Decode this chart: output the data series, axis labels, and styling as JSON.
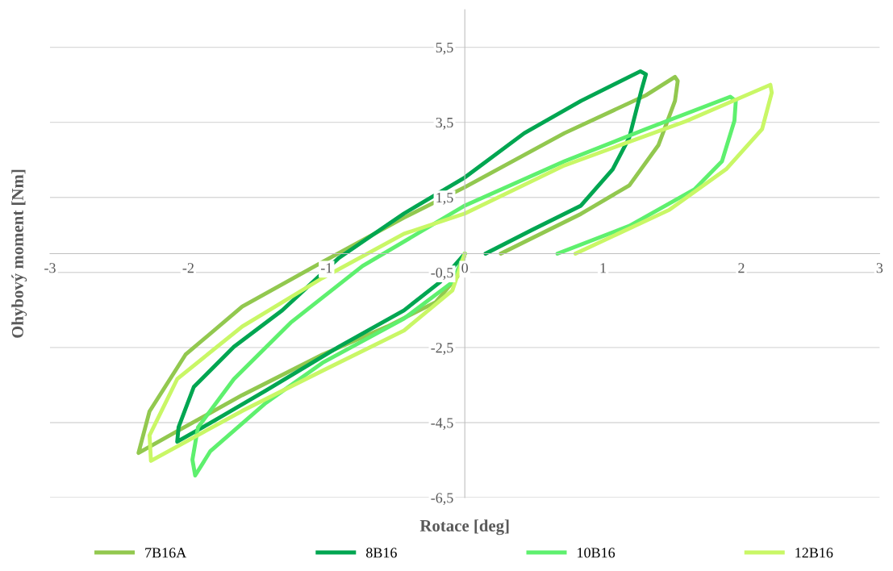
{
  "chart_data": {
    "type": "line",
    "xlabel": "Rotace [deg]",
    "ylabel": "Ohybový moment [Nm]",
    "xlim": [
      -3,
      3
    ],
    "xticks": [
      -3,
      -2,
      -1,
      0,
      1,
      2,
      3
    ],
    "ylim": [
      -6.5,
      6.5
    ],
    "yticks": [
      {
        "value": -6.5,
        "label": "-6,5"
      },
      {
        "value": -4.5,
        "label": "-4,5"
      },
      {
        "value": -2.5,
        "label": "-2,5"
      },
      {
        "value": -0.5,
        "label": "-0,5"
      },
      {
        "value": 1.5,
        "label": "1,5"
      },
      {
        "value": 3.5,
        "label": "3,5"
      },
      {
        "value": 5.5,
        "label": "5,5"
      }
    ],
    "grid": "y",
    "legend": "bottom",
    "marker": "none",
    "line_style": "solid",
    "series": [
      {
        "name": "7B16A",
        "color": "#92c84f",
        "x": [
          0,
          -0.04,
          -0.21,
          -0.56,
          -1.03,
          -1.61,
          -2.08,
          -2.36,
          -2.28,
          -2.02,
          -1.61,
          -1.03,
          -0.44,
          0,
          0.72,
          1.31,
          1.52,
          1.54,
          1.52,
          1.4,
          1.19,
          0.84,
          0.26
        ],
        "values": [
          0,
          -0.55,
          -1.29,
          -1.94,
          -2.69,
          -3.77,
          -4.73,
          -5.31,
          -4.2,
          -2.69,
          -1.41,
          -0.22,
          0.96,
          1.77,
          3.21,
          4.22,
          4.71,
          4.6,
          4.07,
          2.89,
          1.82,
          1.06,
          0
        ]
      },
      {
        "name": "8B16",
        "color": "#00a651",
        "x": [
          0,
          -0.18,
          -0.44,
          -0.91,
          -1.44,
          -1.84,
          -2.08,
          -2.07,
          -1.96,
          -1.67,
          -1.32,
          -0.91,
          -0.44,
          0,
          0.43,
          0.84,
          1.27,
          1.31,
          1.28,
          1.19,
          1.07,
          0.84,
          0.49,
          0.15
        ],
        "values": [
          0,
          -0.76,
          -1.51,
          -2.48,
          -3.65,
          -4.51,
          -5.01,
          -4.62,
          -3.55,
          -2.48,
          -1.51,
          -0.11,
          1.07,
          2.03,
          3.21,
          4.07,
          4.86,
          4.78,
          4.39,
          3.1,
          2.25,
          1.28,
          0.64,
          0
        ]
      },
      {
        "name": "10B16",
        "color": "#5ef06e",
        "x": [
          0,
          -0.09,
          -0.44,
          -1.03,
          -1.44,
          -1.84,
          -1.95,
          -1.97,
          -1.93,
          -1.67,
          -1.26,
          -0.74,
          0,
          0.72,
          1.31,
          1.92,
          1.96,
          1.95,
          1.86,
          1.66,
          1.19,
          0.67
        ],
        "values": [
          0,
          -0.76,
          -1.73,
          -2.91,
          -3.98,
          -5.26,
          -5.91,
          -5.49,
          -4.63,
          -3.34,
          -1.84,
          -0.33,
          1.28,
          2.46,
          3.32,
          4.18,
          4.07,
          3.54,
          2.46,
          1.71,
          0.74,
          0
        ]
      },
      {
        "name": "12B16",
        "color": "#c9f766",
        "x": [
          0,
          -0.09,
          -0.44,
          -1.03,
          -1.61,
          -2.27,
          -2.28,
          -2.08,
          -1.61,
          -1.03,
          -0.44,
          0,
          0.72,
          1.6,
          2.21,
          2.22,
          2.15,
          1.89,
          1.48,
          0.8
        ],
        "values": [
          0,
          -0.98,
          -2.05,
          -3.12,
          -4.19,
          -5.52,
          -4.84,
          -3.34,
          -1.94,
          -0.65,
          0.53,
          1.07,
          2.35,
          3.53,
          4.5,
          4.29,
          3.32,
          2.25,
          1.17,
          0
        ]
      }
    ]
  }
}
